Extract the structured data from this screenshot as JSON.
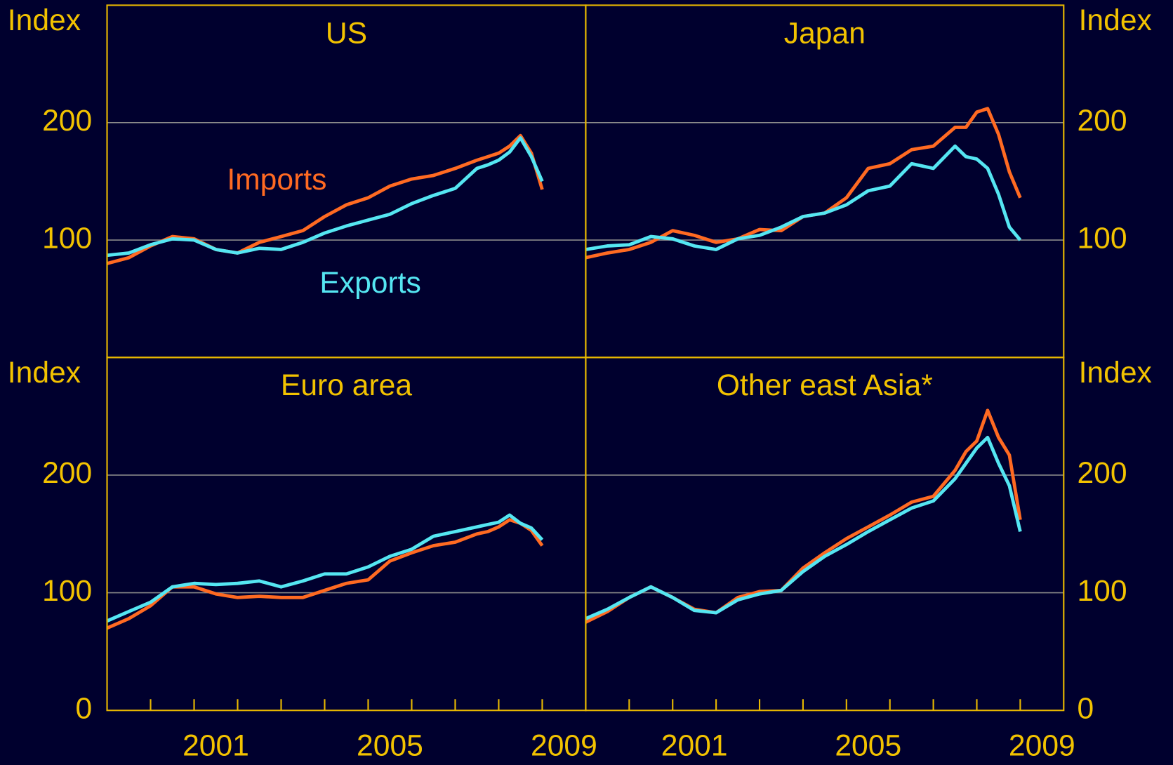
{
  "chart_data": [
    {
      "type": "line",
      "title": "US",
      "y_label": "Index",
      "y_axis_side": "left",
      "x": [
        1999,
        1999.5,
        2000,
        2000.5,
        2001,
        2001.5,
        2002,
        2002.5,
        2003,
        2003.5,
        2004,
        2004.5,
        2005,
        2005.5,
        2006,
        2006.5,
        2007,
        2007.5,
        2007.75,
        2008,
        2008.25,
        2008.5,
        2008.75,
        2009
      ],
      "xlim": [
        1999,
        2010
      ],
      "ylim": [
        0,
        300
      ],
      "yticks": [
        100,
        200
      ],
      "grid": true,
      "series": [
        {
          "name": "Imports",
          "color": "#ff6a22",
          "values": [
            80,
            85,
            95,
            103,
            101,
            92,
            89,
            98,
            103,
            108,
            120,
            130,
            136,
            146,
            152,
            155,
            161,
            168,
            171,
            174,
            180,
            189,
            174,
            143
          ]
        },
        {
          "name": "Exports",
          "color": "#55e6f2",
          "values": [
            87,
            89,
            96,
            101,
            100,
            92,
            89,
            93,
            92,
            98,
            106,
            112,
            117,
            122,
            131,
            138,
            144,
            161,
            164,
            168,
            175,
            187,
            171,
            150
          ]
        }
      ]
    },
    {
      "type": "line",
      "title": "Japan",
      "y_label": "Index",
      "y_axis_side": "right",
      "x": [
        1999,
        1999.5,
        2000,
        2000.5,
        2001,
        2001.5,
        2002,
        2002.5,
        2003,
        2003.5,
        2004,
        2004.5,
        2005,
        2005.5,
        2006,
        2006.5,
        2007,
        2007.5,
        2007.75,
        2008,
        2008.25,
        2008.5,
        2008.75,
        2009
      ],
      "xlim": [
        1999,
        2010
      ],
      "ylim": [
        0,
        300
      ],
      "yticks": [
        100,
        200
      ],
      "grid": true,
      "series": [
        {
          "color": "#ff6a22",
          "values": [
            85,
            89,
            92,
            98,
            108,
            104,
            98,
            101,
            109,
            108,
            120,
            123,
            136,
            161,
            165,
            177,
            180,
            196,
            196,
            209,
            212,
            190,
            158,
            136
          ]
        },
        {
          "color": "#55e6f2",
          "values": [
            92,
            95,
            96,
            103,
            101,
            95,
            92,
            101,
            104,
            111,
            120,
            123,
            130,
            142,
            146,
            165,
            161,
            180,
            171,
            169,
            161,
            139,
            111,
            100
          ]
        }
      ]
    },
    {
      "type": "line",
      "title": "Euro area",
      "y_label": "Index",
      "y_axis_side": "left",
      "x": [
        1999,
        1999.5,
        2000,
        2000.5,
        2001,
        2001.5,
        2002,
        2002.5,
        2003,
        2003.5,
        2004,
        2004.5,
        2005,
        2005.5,
        2006,
        2006.5,
        2007,
        2007.5,
        2007.75,
        2008,
        2008.25,
        2008.5,
        2008.75,
        2009
      ],
      "xlim": [
        1999,
        2010
      ],
      "ylim": [
        0,
        300
      ],
      "yticks": [
        0,
        100,
        200
      ],
      "grid": true,
      "xticks": [
        {
          "value": 2001.5,
          "label": "2001"
        },
        {
          "value": 2005.5,
          "label": "2005"
        },
        {
          "value": 2009.5,
          "label": "2009"
        }
      ],
      "xminor_ticks": [
        2000,
        2001,
        2002,
        2003,
        2004,
        2005,
        2006,
        2007,
        2008,
        2009
      ],
      "series": [
        {
          "color": "#ff6a22",
          "values": [
            70,
            78,
            89,
            105,
            105,
            99,
            96,
            97,
            96,
            96,
            102,
            108,
            111,
            127,
            134,
            140,
            143,
            150,
            152,
            156,
            162,
            159,
            153,
            140
          ]
        },
        {
          "color": "#55e6f2",
          "values": [
            76,
            84,
            92,
            105,
            108,
            107,
            108,
            110,
            105,
            110,
            116,
            116,
            122,
            131,
            137,
            148,
            152,
            156,
            158,
            160,
            166,
            159,
            155,
            145
          ]
        }
      ]
    },
    {
      "type": "line",
      "title": "Other east Asia*",
      "y_label": "Index",
      "y_axis_side": "right",
      "x": [
        1999,
        1999.5,
        2000,
        2000.5,
        2001,
        2001.5,
        2002,
        2002.5,
        2003,
        2003.5,
        2004,
        2004.5,
        2005,
        2005.5,
        2006,
        2006.5,
        2007,
        2007.5,
        2007.75,
        2008,
        2008.25,
        2008.5,
        2008.75,
        2009
      ],
      "xlim": [
        1999,
        2010
      ],
      "ylim": [
        0,
        300
      ],
      "yticks": [
        0,
        100,
        200
      ],
      "grid": true,
      "xticks": [
        {
          "value": 2001.5,
          "label": "2001"
        },
        {
          "value": 2005.5,
          "label": "2005"
        },
        {
          "value": 2009.5,
          "label": "2009"
        }
      ],
      "xminor_ticks": [
        2000,
        2001,
        2002,
        2003,
        2004,
        2005,
        2006,
        2007,
        2008,
        2009
      ],
      "series": [
        {
          "color": "#ff6a22",
          "values": [
            75,
            84,
            96,
            105,
            96,
            86,
            83,
            96,
            101,
            102,
            121,
            134,
            146,
            156,
            166,
            177,
            182,
            204,
            220,
            229,
            255,
            232,
            217,
            162
          ]
        },
        {
          "color": "#55e6f2",
          "values": [
            78,
            86,
            96,
            105,
            96,
            85,
            83,
            94,
            99,
            102,
            118,
            131,
            141,
            152,
            162,
            172,
            178,
            197,
            210,
            223,
            232,
            210,
            191,
            152
          ]
        }
      ]
    }
  ]
}
